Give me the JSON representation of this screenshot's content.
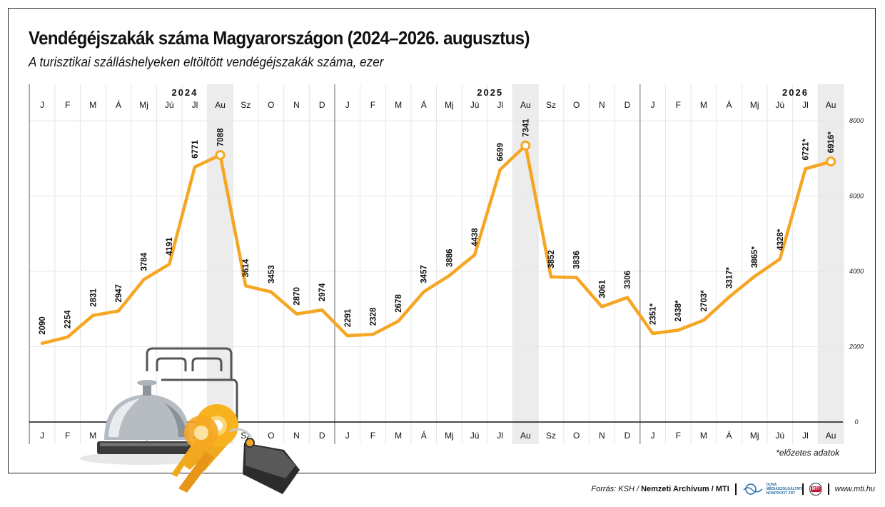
{
  "title": "Vendégéjszakák száma Magyarországon (2024–2026. augusztus)",
  "subtitle": "A turisztikai szálláshelyeken eltöltött vendégéjszakák száma, ezer",
  "footnote": "*előzetes adatok",
  "footer": {
    "source_prefix": "Forrás: KSH / ",
    "source_bold": "Nemzeti Archívum / MTI",
    "duna_logo_text": "DUNA MÉDIASZOLGÁLTATÓ NONPROFIT ZRT",
    "mti_logo_text": "MTI",
    "website": "www.mti.hu"
  },
  "colors": {
    "line": "#f5a623",
    "highlight_band": "#ececec",
    "grid": "#e6e6e6",
    "axis": "#111111"
  },
  "icons": [
    "hotel-bell-icon",
    "hotel-bed-icon",
    "golden-keys-icon"
  ],
  "chart_data": {
    "type": "line",
    "years": [
      {
        "label": "2024",
        "months": [
          "J",
          "F",
          "M",
          "Á",
          "Mj",
          "Jú",
          "Jl",
          "Au",
          "Sz",
          "O",
          "N",
          "D"
        ]
      },
      {
        "label": "2025",
        "months": [
          "J",
          "F",
          "M",
          "Á",
          "Mj",
          "Jú",
          "Jl",
          "Au",
          "Sz",
          "O",
          "N",
          "D"
        ]
      },
      {
        "label": "2026",
        "months": [
          "J",
          "F",
          "M",
          "Á",
          "Mj",
          "Jú",
          "Jl",
          "Au"
        ]
      }
    ],
    "highlight_month": "Au",
    "series": [
      {
        "values": [
          2090,
          2254,
          2831,
          2947,
          3784,
          4191,
          6771,
          7088,
          3614,
          3453,
          2870,
          2974,
          2291,
          2328,
          2678,
          3457,
          3886,
          4438,
          6699,
          7341,
          3852,
          3836,
          3061,
          3306,
          2351,
          2438,
          2703,
          3317,
          3865,
          4328,
          6721,
          6916
        ],
        "labels": [
          "2090",
          "2254",
          "2831",
          "2947",
          "3784",
          "4191",
          "6771",
          "7088",
          "3614",
          "3453",
          "2870",
          "2974",
          "2291",
          "2328",
          "2678",
          "3457",
          "3886",
          "4438",
          "6699",
          "7341",
          "3852",
          "3836",
          "3061",
          "3306",
          "2351*",
          "2438*",
          "2703*",
          "3317*",
          "3865*",
          "4328*",
          "6721*",
          "6916*"
        ]
      }
    ],
    "ylim": [
      0,
      8000
    ],
    "yticks": [
      0,
      2000,
      4000,
      6000,
      8000
    ],
    "grid": true,
    "markers_on": [
      "Au"
    ]
  }
}
